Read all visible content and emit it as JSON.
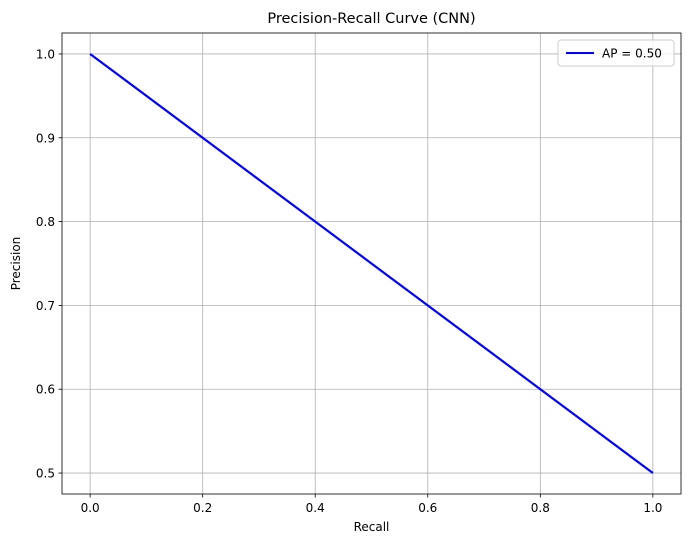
{
  "chart_data": {
    "type": "line",
    "title": "Precision-Recall Curve (CNN)",
    "xlabel": "Recall",
    "ylabel": "Precision",
    "xlim": [
      -0.05,
      1.05
    ],
    "ylim": [
      0.475,
      1.025
    ],
    "xticks": [
      0.0,
      0.2,
      0.4,
      0.6,
      0.8,
      1.0
    ],
    "xtick_labels": [
      "0.0",
      "0.2",
      "0.4",
      "0.6",
      "0.8",
      "1.0"
    ],
    "yticks": [
      0.5,
      0.6,
      0.7,
      0.8,
      0.9,
      1.0
    ],
    "ytick_labels": [
      "0.5",
      "0.6",
      "0.7",
      "0.8",
      "0.9",
      "1.0"
    ],
    "grid": true,
    "legend_position": "top-right",
    "series": [
      {
        "name": "AP = 0.50",
        "color": "#0000ff",
        "x": [
          0.0,
          1.0
        ],
        "y": [
          1.0,
          0.5
        ]
      }
    ]
  }
}
